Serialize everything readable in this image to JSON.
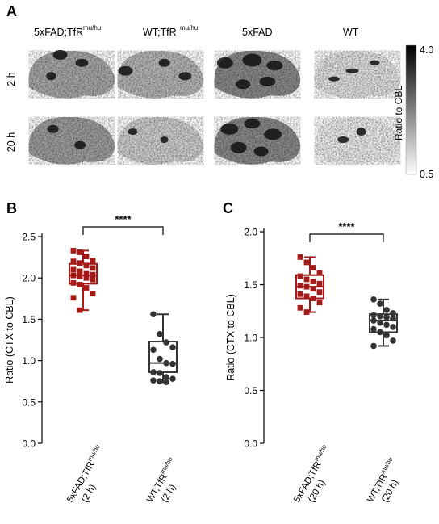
{
  "panel_labels": {
    "a": "A",
    "b": "B",
    "c": "C"
  },
  "panel_a": {
    "columns": [
      {
        "base": "5xFAD;TfR",
        "sup": "mu/hu"
      },
      {
        "base": "WT;TfR",
        "sup": "mu/hu"
      },
      {
        "base": "5xFAD",
        "sup": ""
      },
      {
        "base": "WT",
        "sup": ""
      }
    ],
    "rows": [
      "2 h",
      "20 h"
    ],
    "colorbar": {
      "label": "Ratio to CBL",
      "max_label": "4.0",
      "min_label": "0.5",
      "max": 4.0,
      "min": 0.5
    }
  },
  "chart_data": [
    {
      "type": "box",
      "panel": "B",
      "ylabel": "Ratio (CTX to CBL)",
      "ylim": [
        0,
        2.5
      ],
      "yticks": [
        "0.0",
        "0.5",
        "1.0",
        "1.5",
        "2.0",
        "2.5"
      ],
      "significance": "****",
      "groups": [
        {
          "label_base": "5xFAD;TfR",
          "label_sup": "mu/hu",
          "label_time": "(2 h)",
          "color": "#a31a17",
          "whisker_low": 1.61,
          "q1": 1.93,
          "median": 2.03,
          "q3": 2.17,
          "whisker_high": 2.33,
          "points": [
            2.33,
            2.31,
            2.26,
            2.21,
            2.2,
            2.18,
            2.15,
            2.12,
            2.1,
            2.08,
            2.05,
            2.04,
            2.03,
            2.02,
            2.0,
            1.98,
            1.94,
            1.92,
            1.88,
            1.81,
            1.76,
            1.61
          ]
        },
        {
          "label_base": "WT;TfR",
          "label_sup": "mu/hu",
          "label_time": "(2 h)",
          "color": "#333333",
          "whisker_low": 0.74,
          "q1": 0.86,
          "median": 0.97,
          "q3": 1.23,
          "whisker_high": 1.56,
          "points": [
            1.56,
            1.32,
            1.22,
            1.16,
            1.13,
            1.02,
            0.97,
            0.96,
            0.86,
            0.85,
            0.8,
            0.78,
            0.76,
            0.75,
            0.74
          ]
        }
      ]
    },
    {
      "type": "box",
      "panel": "C",
      "ylabel": "Ratio (CTX to CBL)",
      "ylim": [
        0,
        2.0
      ],
      "yticks": [
        "0.0",
        "0.5",
        "1.0",
        "1.5",
        "2.0"
      ],
      "significance": "****",
      "groups": [
        {
          "label_base": "5xFAD;TfR",
          "label_sup": "mu/hu",
          "label_time": "(20 h)",
          "color": "#a31a17",
          "whisker_low": 1.24,
          "q1": 1.37,
          "median": 1.48,
          "q3": 1.59,
          "whisker_high": 1.76,
          "points": [
            1.76,
            1.71,
            1.66,
            1.61,
            1.58,
            1.55,
            1.53,
            1.51,
            1.49,
            1.48,
            1.46,
            1.43,
            1.41,
            1.39,
            1.37,
            1.33,
            1.28,
            1.24
          ]
        },
        {
          "label_base": "WT;TfR",
          "label_sup": "mu/hu",
          "label_time": "(20 h)",
          "color": "#333333",
          "whisker_low": 0.92,
          "q1": 1.05,
          "median": 1.16,
          "q3": 1.22,
          "whisker_high": 1.36,
          "points": [
            1.36,
            1.32,
            1.26,
            1.23,
            1.21,
            1.2,
            1.19,
            1.18,
            1.16,
            1.14,
            1.12,
            1.1,
            1.08,
            1.05,
            1.02,
            0.97,
            0.92
          ]
        }
      ]
    }
  ]
}
